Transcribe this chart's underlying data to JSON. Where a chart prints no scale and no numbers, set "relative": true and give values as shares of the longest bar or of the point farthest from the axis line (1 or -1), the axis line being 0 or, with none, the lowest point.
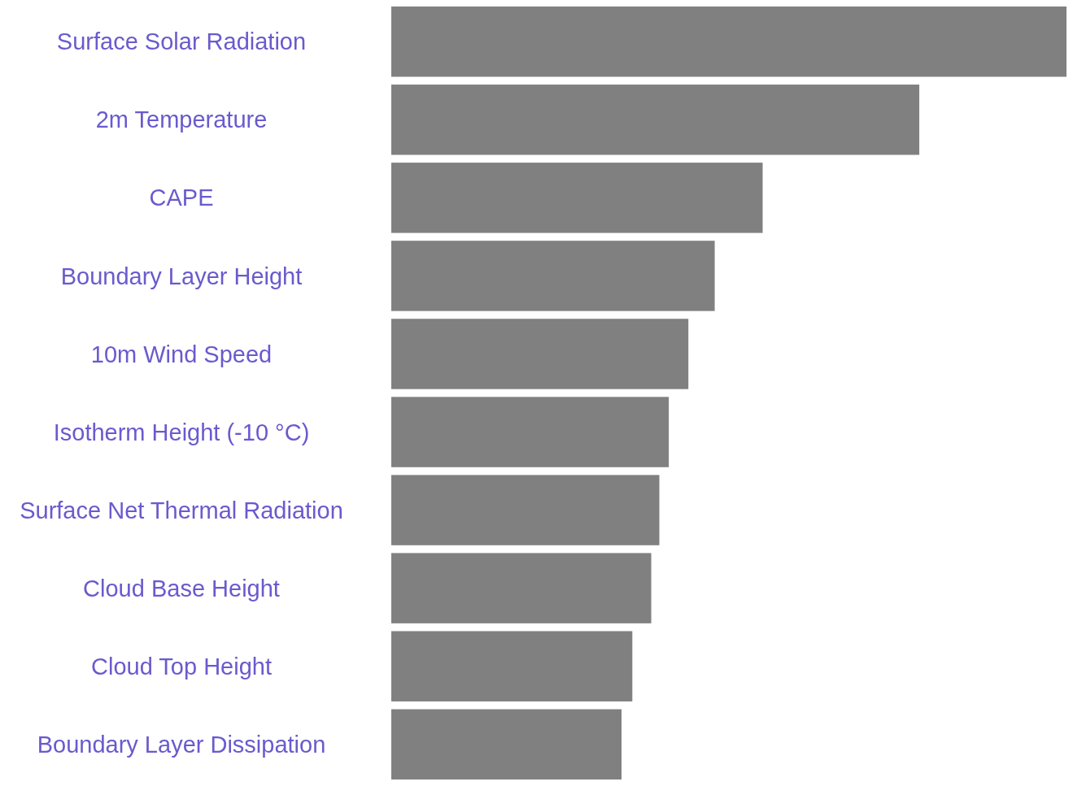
{
  "chart_data": {
    "type": "bar",
    "orientation": "horizontal",
    "relative": true,
    "categories": [
      "Surface Solar Radiation",
      "2m Temperature",
      "CAPE",
      "Boundary Layer Height",
      "10m Wind Speed",
      "Isotherm Height (-10 °C)",
      "Surface Net Thermal Radiation",
      "Cloud Base Height",
      "Cloud Top Height",
      "Boundary Layer Dissipation"
    ],
    "values": [
      1.0,
      0.782,
      0.55,
      0.479,
      0.44,
      0.411,
      0.397,
      0.385,
      0.357,
      0.341
    ],
    "color": "#808080"
  }
}
